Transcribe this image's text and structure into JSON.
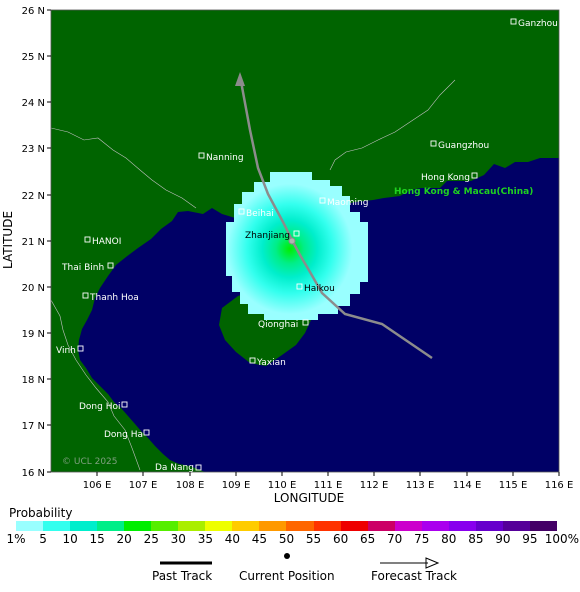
{
  "map": {
    "x_axis_title": "LONGITUDE",
    "y_axis_title": "LATITUDE",
    "lon_ticks": [
      "106 E",
      "107 E",
      "108 E",
      "109 E",
      "110 E",
      "111 E",
      "112 E",
      "113 E",
      "114 E",
      "115 E",
      "116 E"
    ],
    "lat_ticks": [
      "26 N",
      "25 N",
      "24 N",
      "23 N",
      "22 N",
      "21 N",
      "20 N",
      "19 N",
      "18 N",
      "17 N",
      "16 N"
    ],
    "copyright": "© UCL 2025",
    "region_label": "Hong Kong & Macau(China)",
    "colors": {
      "land": "#006400",
      "sea": "#000066",
      "track": "#8c8c8c",
      "region_label": "#1fd21f"
    },
    "cities": [
      {
        "name": "Ganzhou"
      },
      {
        "name": "Guangzhou"
      },
      {
        "name": "Nanning"
      },
      {
        "name": "Hong Kong"
      },
      {
        "name": "Beihai"
      },
      {
        "name": "Maoming"
      },
      {
        "name": "Zhanjiang"
      },
      {
        "name": "HANOI"
      },
      {
        "name": "Thai Binh"
      },
      {
        "name": "Haikou"
      },
      {
        "name": "Thanh Hoa"
      },
      {
        "name": "Qionghai"
      },
      {
        "name": "Vinh"
      },
      {
        "name": "Yaxian"
      },
      {
        "name": "Dong Hoi"
      },
      {
        "name": "Dong Ha"
      },
      {
        "name": "Da Nang"
      }
    ]
  },
  "legend": {
    "title": "Probability",
    "labels": [
      "1%",
      "5",
      "10",
      "15",
      "20",
      "25",
      "30",
      "35",
      "40",
      "45",
      "50",
      "55",
      "60",
      "65",
      "70",
      "75",
      "80",
      "85",
      "90",
      "95",
      "100%"
    ],
    "colors": [
      "#99ffff",
      "#33ffee",
      "#00eecc",
      "#00ee88",
      "#00ee00",
      "#55ee00",
      "#aaee00",
      "#eeff00",
      "#ffcc00",
      "#ff9900",
      "#ff6600",
      "#ff3300",
      "#ee0000",
      "#cc0066",
      "#cc00cc",
      "#aa00ee",
      "#8800ee",
      "#6600cc",
      "#550099",
      "#440066"
    ]
  },
  "key": {
    "past_track": "Past Track",
    "current_position": "Current Position",
    "forecast_track": "Forecast Track"
  }
}
